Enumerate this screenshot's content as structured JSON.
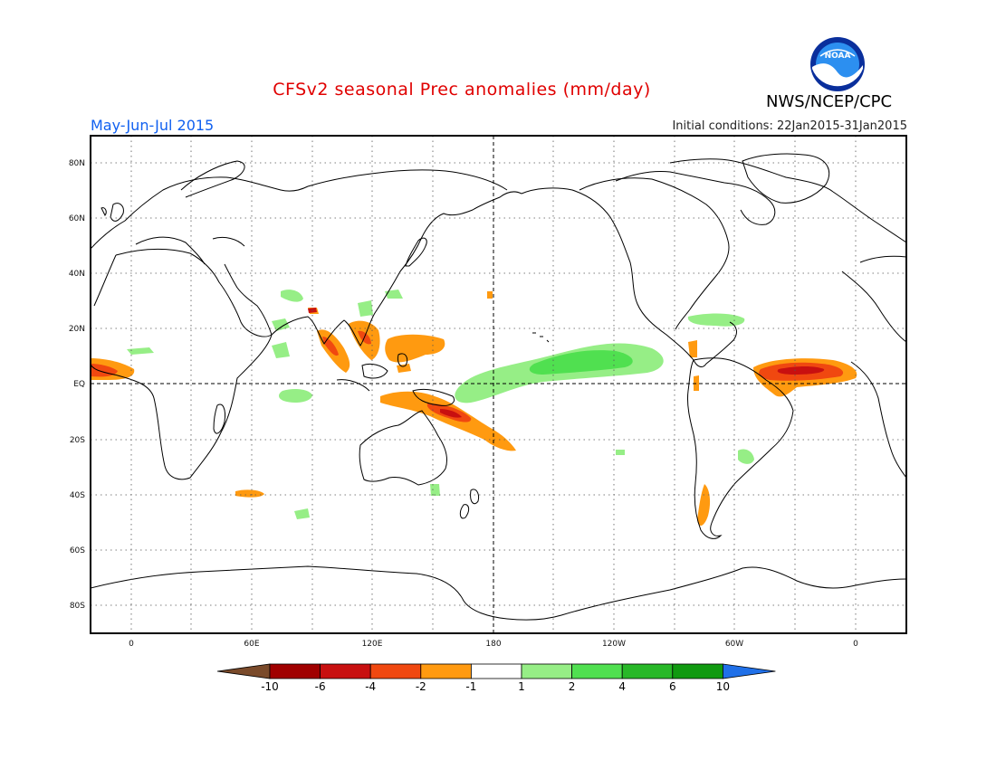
{
  "header": {
    "title": "CFSv2 seasonal Prec anomalies (mm/day)",
    "period": "May-Jun-Jul 2015",
    "initial_conditions": "Initial conditions: 22Jan2015-31Jan2015",
    "agency": "NWS/NCEP/CPC",
    "logo_text": "NOAA"
  },
  "map": {
    "lat_labels": [
      "80N",
      "60N",
      "40N",
      "20N",
      "EQ",
      "20S",
      "40S",
      "60S",
      "80S"
    ],
    "lon_labels": [
      "0",
      "60E",
      "120E",
      "180",
      "120W",
      "60W",
      "0"
    ]
  },
  "colorbar": {
    "labels": [
      "-10",
      "-6",
      "-4",
      "-2",
      "-1",
      "1",
      "2",
      "4",
      "6",
      "10"
    ],
    "colors": [
      "#7a4a2a",
      "#a00000",
      "#c81010",
      "#f04810",
      "#ff9a10",
      "#ffffff",
      "#96ee86",
      "#50e050",
      "#28b828",
      "#109a10",
      "#2070e8"
    ]
  }
}
